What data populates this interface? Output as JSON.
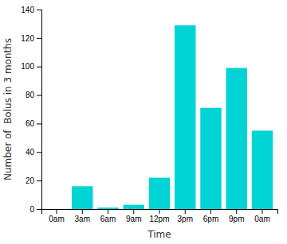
{
  "chart_data": {
    "type": "bar",
    "categories": [
      "0am",
      "3am",
      "6am",
      "9am",
      "12pm",
      "3pm",
      "6pm",
      "9pm",
      "0am"
    ],
    "values": [
      0,
      16,
      1,
      3,
      22,
      129,
      71,
      99,
      55
    ],
    "color": "#00D4D4",
    "xlabel": "Time",
    "ylabel": "Number of  Bolus in 3 months",
    "ylim": [
      0,
      140
    ],
    "yticks": [
      0,
      20,
      40,
      60,
      80,
      100,
      120,
      140
    ],
    "grid": false
  }
}
